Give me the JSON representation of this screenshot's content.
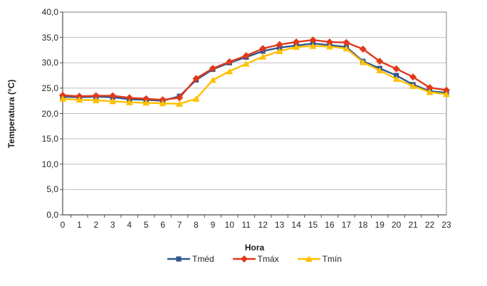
{
  "chart": {
    "y_tick_labels": [
      "40,0",
      "35,0",
      "30,0",
      "25,0",
      "20,0",
      "15,0",
      "10,0",
      "5,0",
      "0,0"
    ],
    "x_tick_labels": [
      "0",
      "1",
      "2",
      "3",
      "4",
      "5",
      "6",
      "7",
      "8",
      "9",
      "10",
      "11",
      "12",
      "13",
      "14",
      "15",
      "16",
      "17",
      "18",
      "19",
      "20",
      "21",
      "22",
      "23"
    ]
  },
  "chart_data": {
    "type": "line",
    "title": "",
    "xlabel": "Hora",
    "ylabel": "Temperatura (°C)",
    "x": [
      0,
      1,
      2,
      3,
      4,
      5,
      6,
      7,
      8,
      9,
      10,
      11,
      12,
      13,
      14,
      15,
      16,
      17,
      18,
      19,
      20,
      21,
      22,
      23
    ],
    "ylim": [
      0,
      40
    ],
    "y_tick_step": 5,
    "grid": true,
    "legend_position": "bottom",
    "series": [
      {
        "name": "Tméd",
        "marker": "square",
        "color": "#30588C",
        "values": [
          23.3,
          23.2,
          23.3,
          23.2,
          22.8,
          22.7,
          22.5,
          23.4,
          26.6,
          28.7,
          30.0,
          31.1,
          32.3,
          33.0,
          33.4,
          33.8,
          33.5,
          33.1,
          30.3,
          28.9,
          27.5,
          25.7,
          24.4,
          24.1
        ]
      },
      {
        "name": "Tmáx",
        "marker": "diamond",
        "color": "#E1391B",
        "values": [
          23.6,
          23.4,
          23.5,
          23.5,
          23.1,
          22.9,
          22.7,
          23.1,
          26.9,
          28.9,
          30.2,
          31.4,
          32.8,
          33.6,
          34.1,
          34.5,
          34.1,
          34.0,
          32.7,
          30.3,
          28.8,
          27.2,
          25.1,
          24.6
        ]
      },
      {
        "name": "Tmín",
        "marker": "triangle",
        "color": "#FFC000",
        "values": [
          22.9,
          22.7,
          22.6,
          22.4,
          22.2,
          22.1,
          22.0,
          21.9,
          22.9,
          26.6,
          28.3,
          29.8,
          31.2,
          32.3,
          33.1,
          33.3,
          33.2,
          32.8,
          30.1,
          28.5,
          26.8,
          25.4,
          24.2,
          23.8
        ]
      }
    ]
  },
  "style_colors": {
    "gridline": "#BFBFBF",
    "plot_border": "#969696",
    "axis": "#4D4D4D",
    "background": "#FFFFFF"
  }
}
